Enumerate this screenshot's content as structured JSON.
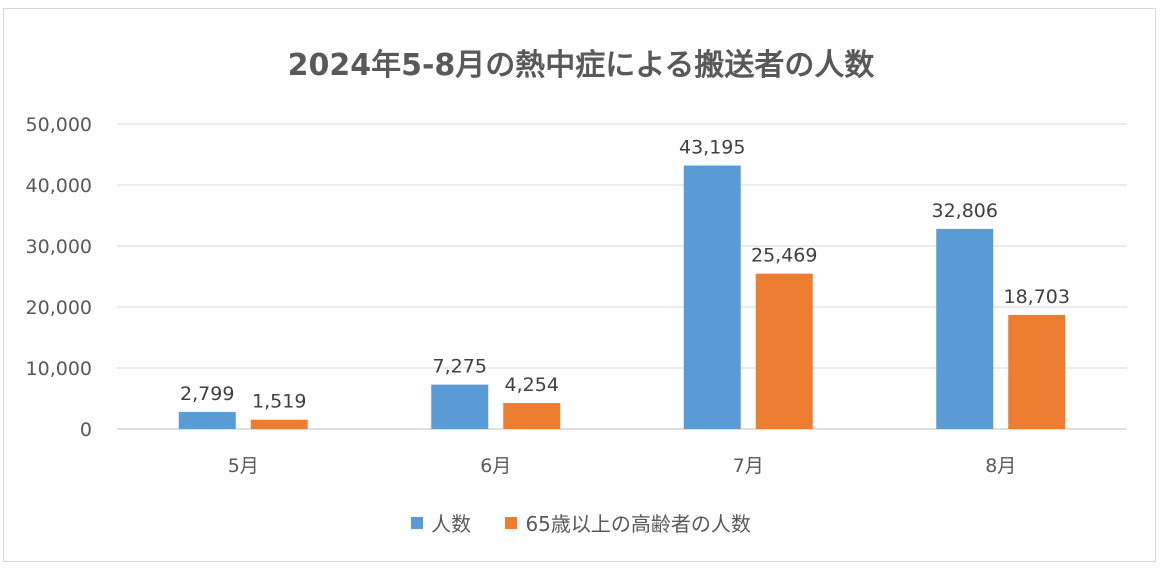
{
  "chart_data": {
    "type": "bar",
    "title": "2024年5-8月の熱中症による搬送者の人数",
    "categories": [
      "5月",
      "6月",
      "7月",
      "8月"
    ],
    "series": [
      {
        "name": "人数",
        "color": "#5b9bd5",
        "values": [
          2799,
          7275,
          43195,
          32806
        ],
        "labels": [
          "2,799",
          "7,275",
          "43,195",
          "32,806"
        ]
      },
      {
        "name": "65歳以上の高齢者の人数",
        "color": "#ed7d31",
        "values": [
          1519,
          4254,
          25469,
          18703
        ],
        "labels": [
          "1,519",
          "4,254",
          "25,469",
          "18,703"
        ]
      }
    ],
    "ylim": [
      0,
      50000
    ],
    "yticks": [
      "0",
      "10,000",
      "20,000",
      "30,000",
      "40,000",
      "50,000"
    ],
    "ytick_values": [
      0,
      10000,
      20000,
      30000,
      40000,
      50000
    ],
    "grid": true,
    "legend_position": "bottom"
  }
}
